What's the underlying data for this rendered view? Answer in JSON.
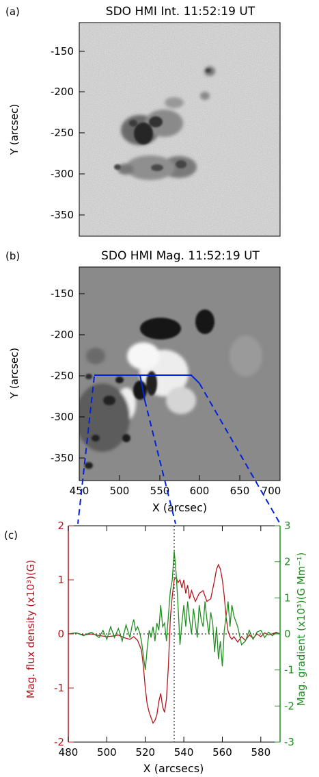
{
  "panel_a": {
    "letter": "(a)",
    "title": "SDO HMI Int. 11:52:19 UT",
    "ylabel": "Y (arcsec)",
    "yticks": [
      "-150",
      "-200",
      "-250",
      "-300",
      "-350"
    ]
  },
  "panel_b": {
    "letter": "(b)",
    "title": "SDO HMI Mag. 11:52:19 UT",
    "ylabel": "Y (arcsec)",
    "xlabel": "X (arcsec)",
    "yticks": [
      "-150",
      "-200",
      "-250",
      "-300",
      "-350"
    ],
    "xticks": [
      "450",
      "500",
      "550",
      "600",
      "650",
      "700"
    ]
  },
  "chart_data": {
    "type": "line",
    "letter": "(c)",
    "xlabel": "X (arcsecs)",
    "ylabel_left": "Mag. flux density (x10³)(G)",
    "ylabel_right": "Mag. gradient (x10³)(G Mm⁻¹)",
    "xlim": [
      480,
      590
    ],
    "ylim_left": [
      -2,
      2
    ],
    "ylim_right": [
      -3,
      3
    ],
    "xticks": [
      "480",
      "500",
      "520",
      "540",
      "560",
      "580"
    ],
    "yticks_left": [
      "2",
      "1",
      "0",
      "-1",
      "-2"
    ],
    "yticks_right": [
      "3",
      "2",
      "1",
      "0",
      "-1",
      "-2",
      "-3"
    ],
    "reference_x": 535,
    "colors": {
      "flux": "#b3171d",
      "gradient": "#1f8f1f"
    },
    "series": [
      {
        "color": "#b3171d",
        "axis": "left",
        "x": [
          480,
          484,
          488,
          492,
          496,
          500,
          503,
          506,
          509,
          512,
          514,
          516,
          518,
          519,
          520,
          521,
          522,
          523,
          524,
          525,
          526,
          527,
          528,
          529,
          530,
          531,
          532,
          533,
          534,
          535,
          536,
          537,
          538,
          539,
          540,
          541,
          542,
          543,
          544,
          546,
          548,
          550,
          552,
          554,
          556,
          557,
          558,
          559,
          560,
          561,
          562,
          563,
          564,
          565,
          566,
          568,
          570,
          572,
          574,
          576,
          578,
          580,
          582,
          584,
          586,
          588,
          590
        ],
        "y": [
          0,
          0.02,
          -0.02,
          0,
          -0.03,
          -0.05,
          -0.04,
          -0.02,
          -0.07,
          -0.1,
          -0.05,
          -0.12,
          -0.3,
          -0.6,
          -1.0,
          -1.3,
          -1.45,
          -1.55,
          -1.65,
          -1.6,
          -1.5,
          -1.25,
          -1.1,
          -1.35,
          -1.45,
          -1.2,
          -0.6,
          0.3,
          0.7,
          1.0,
          1.05,
          0.95,
          1.0,
          0.85,
          1.0,
          0.75,
          0.9,
          0.65,
          0.8,
          0.6,
          0.75,
          0.8,
          0.6,
          0.65,
          1.0,
          1.2,
          1.28,
          1.2,
          1.0,
          0.7,
          0.3,
          0.05,
          -0.05,
          -0.1,
          -0.05,
          -0.15,
          -0.05,
          -0.12,
          -0.02,
          -0.08,
          0,
          -0.05,
          0.02,
          -0.02,
          0,
          0.03,
          0
        ]
      },
      {
        "color": "#1f8f1f",
        "axis": "right",
        "x": [
          480,
          484,
          488,
          492,
          496,
          498,
          500,
          502,
          504,
          506,
          508,
          510,
          512,
          513,
          514,
          515,
          516,
          517,
          518,
          519,
          520,
          521,
          522,
          523,
          524,
          525,
          526,
          527,
          528,
          529,
          530,
          531,
          532,
          533,
          534,
          535,
          536,
          537,
          538,
          539,
          540,
          541,
          542,
          543,
          544,
          545,
          546,
          547,
          548,
          549,
          550,
          551,
          552,
          553,
          554,
          555,
          556,
          557,
          558,
          559,
          560,
          561,
          562,
          563,
          564,
          565,
          566,
          568,
          570,
          572,
          574,
          576,
          578,
          580,
          582,
          584,
          586,
          588,
          590
        ],
        "y": [
          0,
          0.03,
          -0.05,
          0.05,
          -0.1,
          0.1,
          -0.15,
          0.2,
          -0.1,
          0.15,
          -0.2,
          0.25,
          -0.1,
          0.2,
          0.4,
          0.1,
          0.2,
          0.05,
          -0.2,
          -0.6,
          -1.0,
          -0.4,
          0.1,
          -0.1,
          0.2,
          -0.2,
          0.3,
          0.1,
          0.8,
          0.2,
          0.3,
          -0.2,
          0.5,
          1.2,
          1.5,
          2.3,
          1.7,
          0.8,
          -0.3,
          0.3,
          0.8,
          0.2,
          0.9,
          0.4,
          0.0,
          0.7,
          0.3,
          -0.1,
          0.8,
          0.4,
          0.2,
          0.9,
          0.4,
          0.0,
          0.6,
          0.3,
          -0.5,
          0.2,
          -0.7,
          -0.2,
          -0.9,
          0.1,
          0.5,
          0.9,
          0.2,
          0.8,
          0.5,
          0.2,
          -0.3,
          -0.2,
          0.1,
          -0.15,
          0.05,
          0.1,
          -0.1,
          0.05,
          -0.05,
          0.03,
          0
        ]
      }
    ]
  }
}
